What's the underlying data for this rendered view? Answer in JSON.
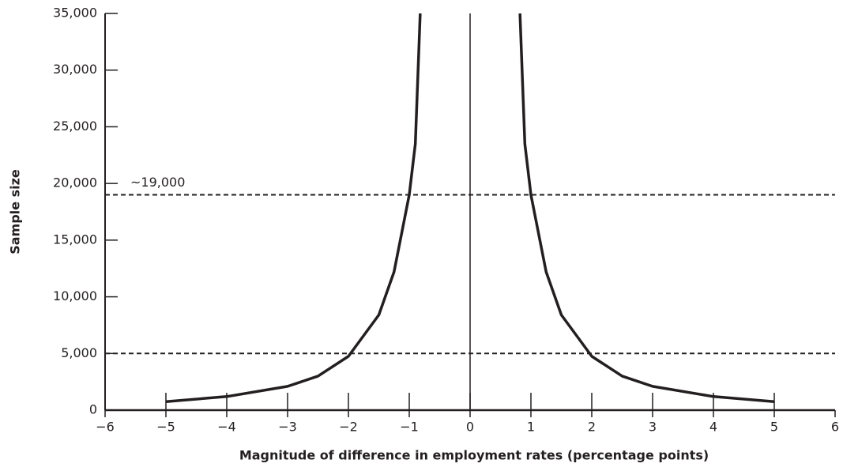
{
  "chart_data": {
    "type": "line",
    "x_label": "Magnitude of difference in employment rates (percentage points)",
    "y_label": "Sample size",
    "annotation": "~19,000",
    "x": [
      -5,
      -4,
      -3,
      -2.5,
      -2,
      -1.5,
      -1.25,
      -1,
      -0.9,
      -0.82,
      0,
      0.82,
      0.9,
      1,
      1.25,
      1.5,
      2,
      2.5,
      3,
      4,
      5
    ],
    "series": [
      {
        "color": "#231f20",
        "values": [
          750,
          1200,
          2100,
          3000,
          4750,
          8400,
          12200,
          19000,
          23500,
          35000,
          null,
          35000,
          23500,
          19000,
          12200,
          8400,
          4750,
          3000,
          2100,
          1200,
          750
        ]
      }
    ],
    "hlines": [
      19000,
      5000
    ],
    "vlines": [
      0
    ],
    "xlim": [
      -6,
      6
    ],
    "ylim": [
      0,
      35000
    ],
    "xticks": [
      {
        "value": -6,
        "label": "−6"
      },
      {
        "value": -5,
        "label": "−5"
      },
      {
        "value": -4,
        "label": "−4"
      },
      {
        "value": -3,
        "label": "−3"
      },
      {
        "value": -2,
        "label": "−2"
      },
      {
        "value": -1,
        "label": "−1"
      },
      0,
      1,
      2,
      3,
      4,
      5,
      6
    ],
    "yticks": [
      0,
      {
        "value": 5000,
        "label": "5,000"
      },
      {
        "value": 10000,
        "label": "10,000"
      },
      {
        "value": 15000,
        "label": "15,000"
      },
      {
        "value": 20000,
        "label": "20,000"
      },
      {
        "value": 25000,
        "label": "25,000"
      },
      {
        "value": 30000,
        "label": "30,000"
      },
      {
        "value": 35000,
        "label": "35,000"
      }
    ]
  }
}
